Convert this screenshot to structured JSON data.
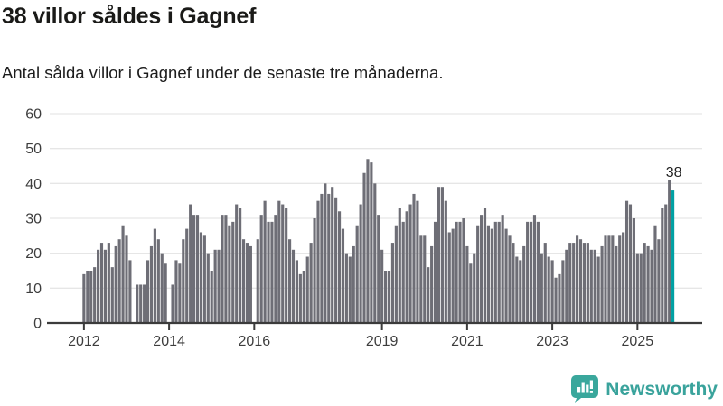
{
  "header": {
    "title": "38 villor såldes i Gagnef",
    "subtitle": "Antal sålda villor i Gagnef under de senaste tre månaderna."
  },
  "chart_data": {
    "type": "bar",
    "title": "38 villor såldes i Gagnef",
    "subtitle": "Antal sålda villor i Gagnef under de senaste tre månaderna.",
    "x_unit": "month",
    "start_month": "2012-01",
    "end_month": "2025-11",
    "values": [
      14,
      15,
      15,
      16,
      21,
      23,
      21,
      23,
      16,
      22,
      24,
      28,
      25,
      18,
      0,
      11,
      11,
      11,
      18,
      22,
      27,
      24,
      20,
      17,
      0,
      11,
      18,
      17,
      24,
      27,
      34,
      31,
      31,
      26,
      25,
      20,
      15,
      21,
      21,
      31,
      31,
      28,
      29,
      34,
      33,
      24,
      23,
      22,
      0,
      24,
      31,
      35,
      29,
      29,
      31,
      35,
      34,
      33,
      24,
      21,
      18,
      14,
      15,
      19,
      23,
      30,
      35,
      37,
      40,
      37,
      39,
      36,
      32,
      27,
      20,
      19,
      22,
      28,
      34,
      43,
      47,
      46,
      40,
      31,
      21,
      15,
      15,
      23,
      28,
      33,
      29,
      32,
      34,
      37,
      35,
      25,
      25,
      16,
      22,
      29,
      39,
      39,
      35,
      26,
      27,
      29,
      29,
      30,
      22,
      17,
      20,
      28,
      31,
      33,
      28,
      27,
      29,
      29,
      31,
      27,
      25,
      23,
      19,
      18,
      22,
      29,
      29,
      31,
      29,
      20,
      23,
      19,
      18,
      13,
      14,
      18,
      21,
      23,
      23,
      25,
      24,
      23,
      23,
      21,
      21,
      19,
      22,
      25,
      25,
      25,
      22,
      25,
      26,
      35,
      34,
      30,
      20,
      20,
      23,
      22,
      21,
      28,
      24,
      33,
      34,
      41,
      38
    ],
    "highlight_last_bar": true,
    "highlight_value_label": "38",
    "ylim": [
      0,
      60
    ],
    "yticks": [
      0,
      10,
      20,
      30,
      40,
      50,
      60
    ],
    "xticks": [
      {
        "label": "2012",
        "month_index": 0
      },
      {
        "label": "2014",
        "month_index": 24
      },
      {
        "label": "2016",
        "month_index": 48
      },
      {
        "label": "2019",
        "month_index": 84
      },
      {
        "label": "2021",
        "month_index": 108
      },
      {
        "label": "2023",
        "month_index": 132
      },
      {
        "label": "2025",
        "month_index": 156
      }
    ],
    "grid": true,
    "legend": "none",
    "bar_color": "#6e6e76",
    "highlight_color": "#00a0a3",
    "grid_color": "#e6e6e6",
    "axis_color": "#3b3b3b",
    "label_color": "#3d3d3d"
  },
  "footer": {
    "brand": "Newsworthy",
    "brand_color": "#3aa39c",
    "logo_icon": "bar-chart-speech-bubble"
  }
}
